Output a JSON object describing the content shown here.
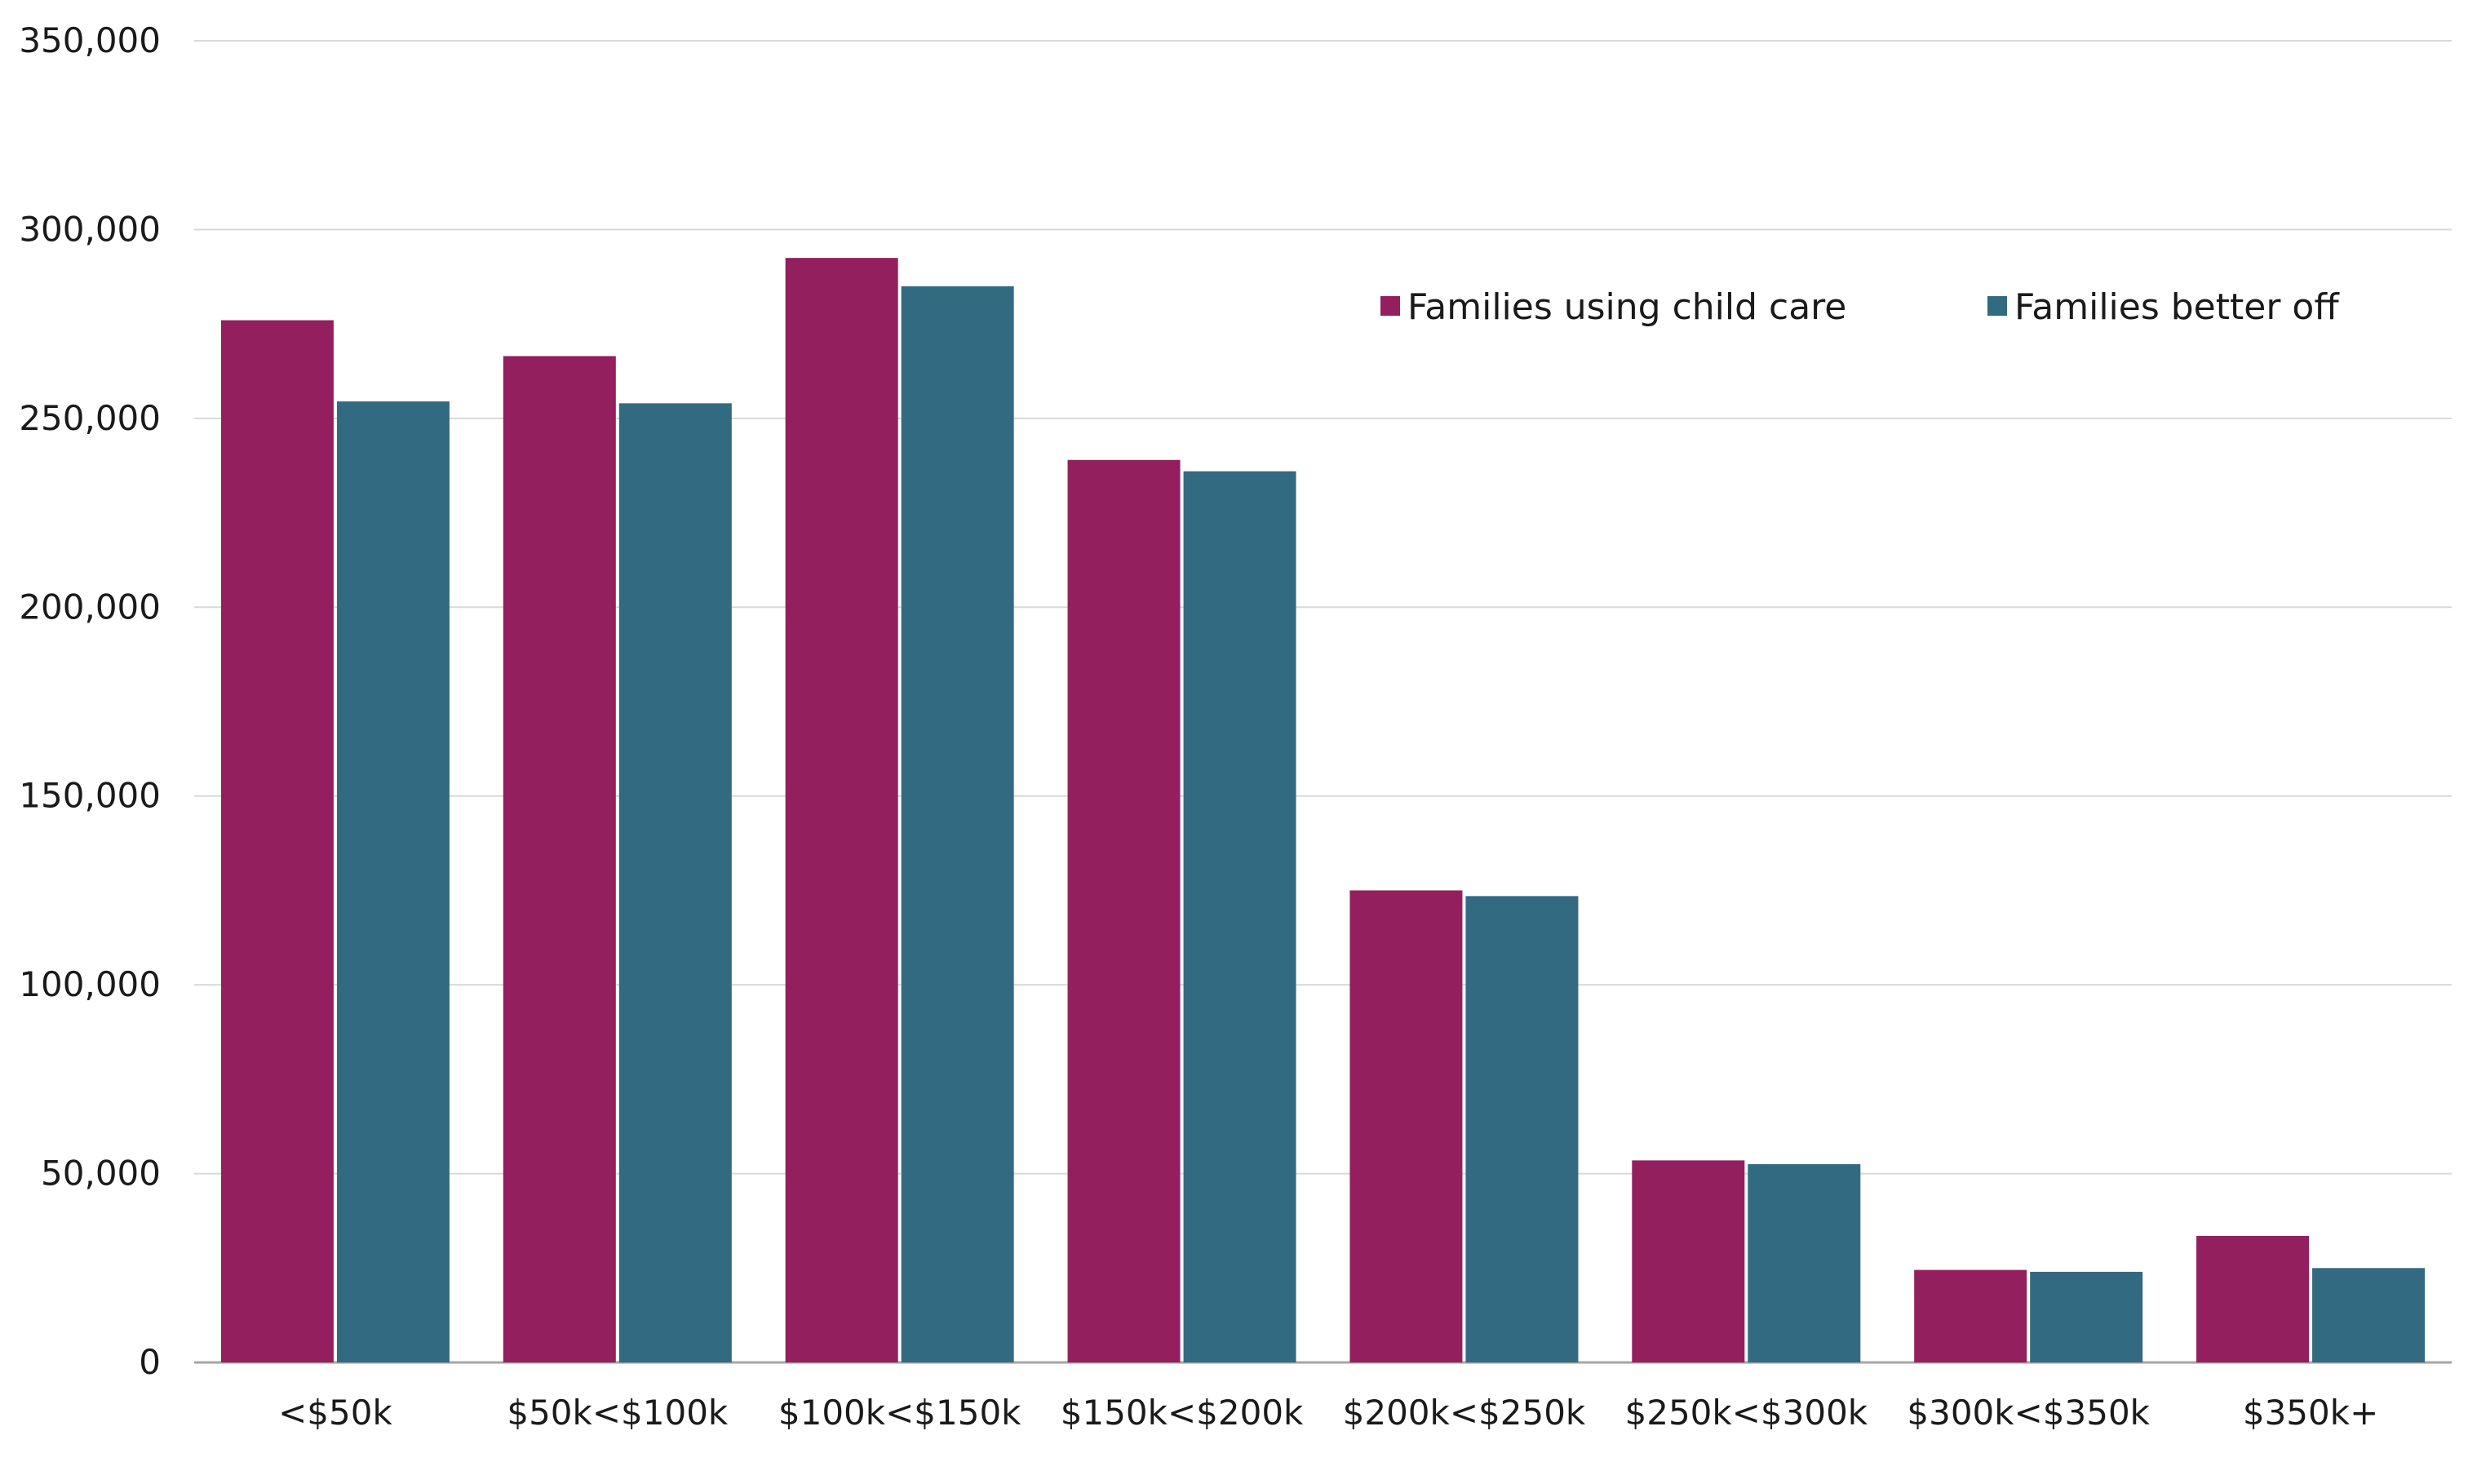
{
  "chart_data": {
    "type": "bar",
    "title": "",
    "xlabel": "",
    "ylabel": "",
    "categories": [
      "<$50k",
      "$50k<$100k",
      "$100k<$150k",
      "$150k<$200k",
      "$200k<$250k",
      "$250k<$300k",
      "$300k<$350k",
      "$350k+"
    ],
    "series": [
      {
        "name": "Families using child care",
        "color": "#931f5f",
        "values": [
          276000,
          266500,
          292500,
          239000,
          125000,
          53500,
          24500,
          33500
        ]
      },
      {
        "name": "Families better off",
        "color": "#326a81",
        "values": [
          254500,
          254000,
          285000,
          236000,
          123500,
          52500,
          24000,
          25000
        ]
      }
    ],
    "ylim": [
      0,
      350000
    ],
    "yticks": [
      0,
      50000,
      100000,
      150000,
      200000,
      250000,
      300000,
      350000
    ],
    "ytick_labels": [
      "0",
      "50,000",
      "100,000",
      "150,000",
      "200,000",
      "250,000",
      "300,000",
      "350,000"
    ],
    "grid": true,
    "legend_position": "top-right"
  }
}
